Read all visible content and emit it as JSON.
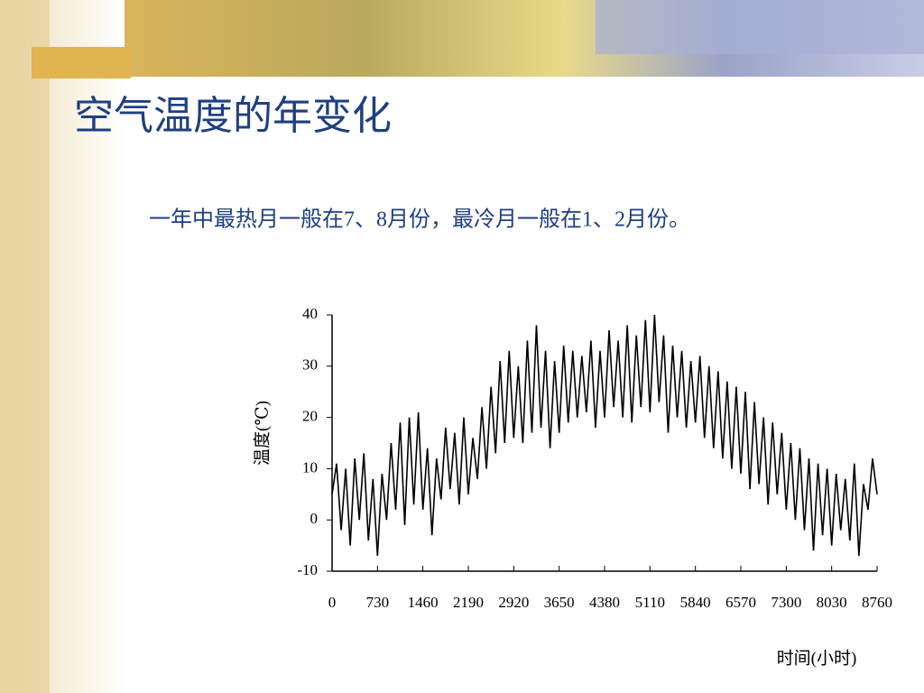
{
  "slide": {
    "title": "空气温度的年变化",
    "subtitle": "一年中最热月一般在7、8月份，最冷月一般在1、2月份。"
  },
  "chart_data": {
    "type": "line",
    "y_label": "温度(℃)",
    "x_label": "时间(小时)",
    "color": "#000000",
    "x": [
      0,
      73,
      146,
      219,
      292,
      365,
      438,
      511,
      584,
      657,
      730,
      803,
      876,
      949,
      1022,
      1095,
      1168,
      1241,
      1314,
      1387,
      1460,
      1533,
      1606,
      1679,
      1752,
      1825,
      1898,
      1971,
      2044,
      2117,
      2190,
      2263,
      2336,
      2409,
      2482,
      2555,
      2628,
      2701,
      2774,
      2847,
      2920,
      2993,
      3066,
      3139,
      3212,
      3285,
      3358,
      3431,
      3504,
      3577,
      3650,
      3723,
      3796,
      3869,
      3942,
      4015,
      4088,
      4161,
      4234,
      4307,
      4380,
      4453,
      4526,
      4599,
      4672,
      4745,
      4818,
      4891,
      4964,
      5037,
      5110,
      5183,
      5256,
      5329,
      5402,
      5475,
      5548,
      5621,
      5694,
      5767,
      5840,
      5913,
      5986,
      6059,
      6132,
      6205,
      6278,
      6351,
      6424,
      6497,
      6570,
      6643,
      6716,
      6789,
      6862,
      6935,
      7008,
      7081,
      7154,
      7227,
      7300,
      7373,
      7446,
      7519,
      7592,
      7665,
      7738,
      7811,
      7884,
      7957,
      8030,
      8103,
      8176,
      8249,
      8322,
      8395,
      8468,
      8541,
      8614,
      8687,
      8760
    ],
    "values": [
      5,
      11,
      -2,
      10,
      -5,
      12,
      0,
      13,
      -4,
      8,
      -7,
      9,
      0,
      15,
      2,
      19,
      -1,
      20,
      3,
      21,
      2,
      14,
      -3,
      12,
      4,
      18,
      6,
      17,
      3,
      20,
      5,
      16,
      8,
      22,
      10,
      26,
      13,
      31,
      15,
      33,
      16,
      30,
      15,
      35,
      17,
      38,
      18,
      33,
      14,
      31,
      17,
      34,
      19,
      33,
      20,
      32,
      21,
      35,
      18,
      33,
      20,
      37,
      22,
      35,
      20,
      38,
      19,
      36,
      22,
      39,
      21,
      40,
      23,
      36,
      17,
      34,
      20,
      33,
      18,
      31,
      19,
      32,
      16,
      30,
      14,
      29,
      12,
      27,
      10,
      26,
      9,
      25,
      6,
      23,
      7,
      20,
      3,
      19,
      5,
      17,
      2,
      15,
      0,
      14,
      -2,
      12,
      -6,
      11,
      -3,
      10,
      -5,
      9,
      -2,
      8,
      -4,
      11,
      -7,
      7,
      2,
      12,
      5
    ],
    "xlim": [
      0,
      8760
    ],
    "xticks": [
      0,
      730,
      1460,
      2190,
      2920,
      3650,
      4380,
      5110,
      5840,
      6570,
      7300,
      8030,
      8760
    ],
    "ylim": [
      -10,
      40
    ],
    "yticks": [
      -10,
      0,
      10,
      20,
      30,
      40
    ],
    "grid": false
  }
}
